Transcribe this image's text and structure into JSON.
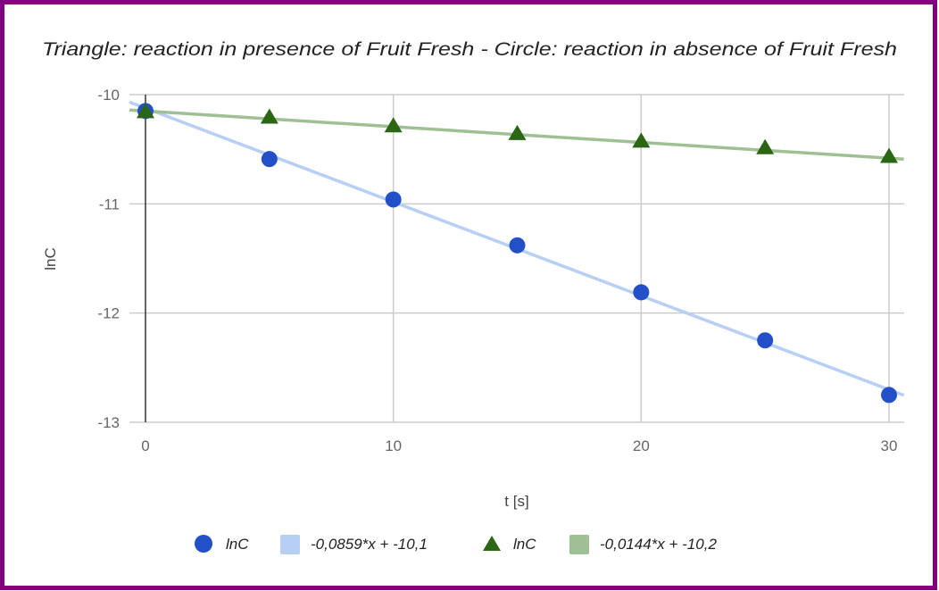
{
  "chart_data": {
    "type": "scatter",
    "title": "Triangle: reaction in presence of Fruit Fresh - Circle: reaction in absence of Fruit Fresh",
    "xlabel": "t [s]",
    "ylabel": "lnC",
    "xlim": [
      -0.65,
      30.6
    ],
    "ylim": [
      -13,
      -10
    ],
    "x_ticks": [
      0,
      10,
      20,
      30
    ],
    "x_tick_labels": [
      "0",
      "10",
      "20",
      "30"
    ],
    "y_ticks": [
      -10,
      -11,
      -12,
      -13
    ],
    "y_tick_labels": [
      "-10",
      "-11",
      "-12",
      "-13"
    ],
    "grid": true,
    "legend_position": "bottom",
    "series": [
      {
        "name": "lnC",
        "marker": "circle",
        "color": "#2350c8",
        "x": [
          0,
          5,
          10,
          15,
          20,
          25,
          30
        ],
        "y": [
          -10.15,
          -10.59,
          -10.96,
          -11.38,
          -11.81,
          -12.25,
          -12.75
        ]
      },
      {
        "name": "-0,0859*x + -10,1",
        "kind": "trendline",
        "color": "#b7cff5",
        "slope": -0.0859,
        "intercept": -10.1,
        "draw_intercept": -10.124
      },
      {
        "name": "lnC",
        "marker": "triangle",
        "color": "#2a6614",
        "x": [
          0,
          5,
          10,
          15,
          20,
          25,
          30
        ],
        "y": [
          -10.15,
          -10.2,
          -10.28,
          -10.35,
          -10.42,
          -10.48,
          -10.56
        ]
      },
      {
        "name": "-0,0144*x + -10,2",
        "kind": "trendline",
        "color": "#9fc095",
        "slope": -0.0144,
        "intercept": -10.2,
        "draw_intercept": -10.15
      }
    ]
  },
  "colors": {
    "frame": "#800080",
    "grid": "#cccccc",
    "zero_axis": "#333333"
  }
}
